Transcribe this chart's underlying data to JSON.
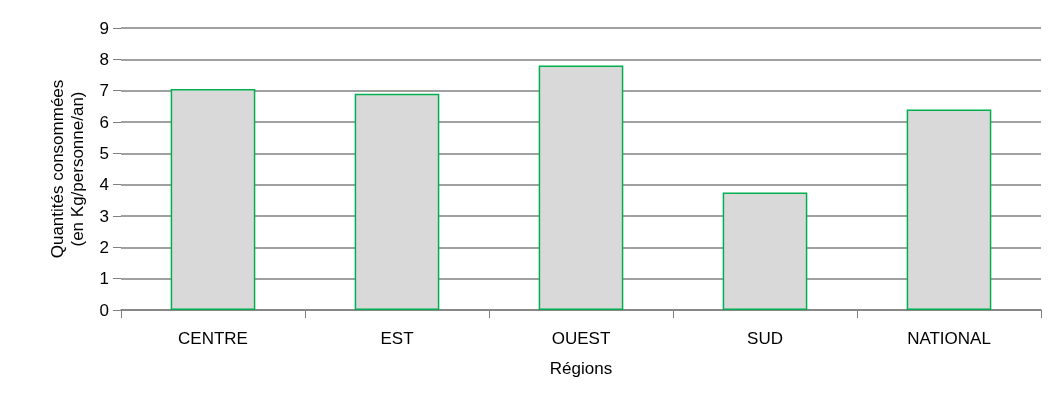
{
  "chart_data": {
    "type": "bar",
    "xlabel": "Régions",
    "ylabel": "Quantités consommées\n(en Kg/personne/an)",
    "categories": [
      "CENTRE",
      "EST",
      "OUEST",
      "SUD",
      "NATIONAL"
    ],
    "series": [
      {
        "color": "#d9d9d9",
        "values": [
          7.05,
          6.9,
          7.8,
          3.75,
          6.4
        ]
      }
    ],
    "ylim": [
      0,
      9
    ],
    "yticks": [
      0,
      1,
      2,
      3,
      4,
      5,
      6,
      7,
      8,
      9
    ],
    "grid": "y"
  }
}
